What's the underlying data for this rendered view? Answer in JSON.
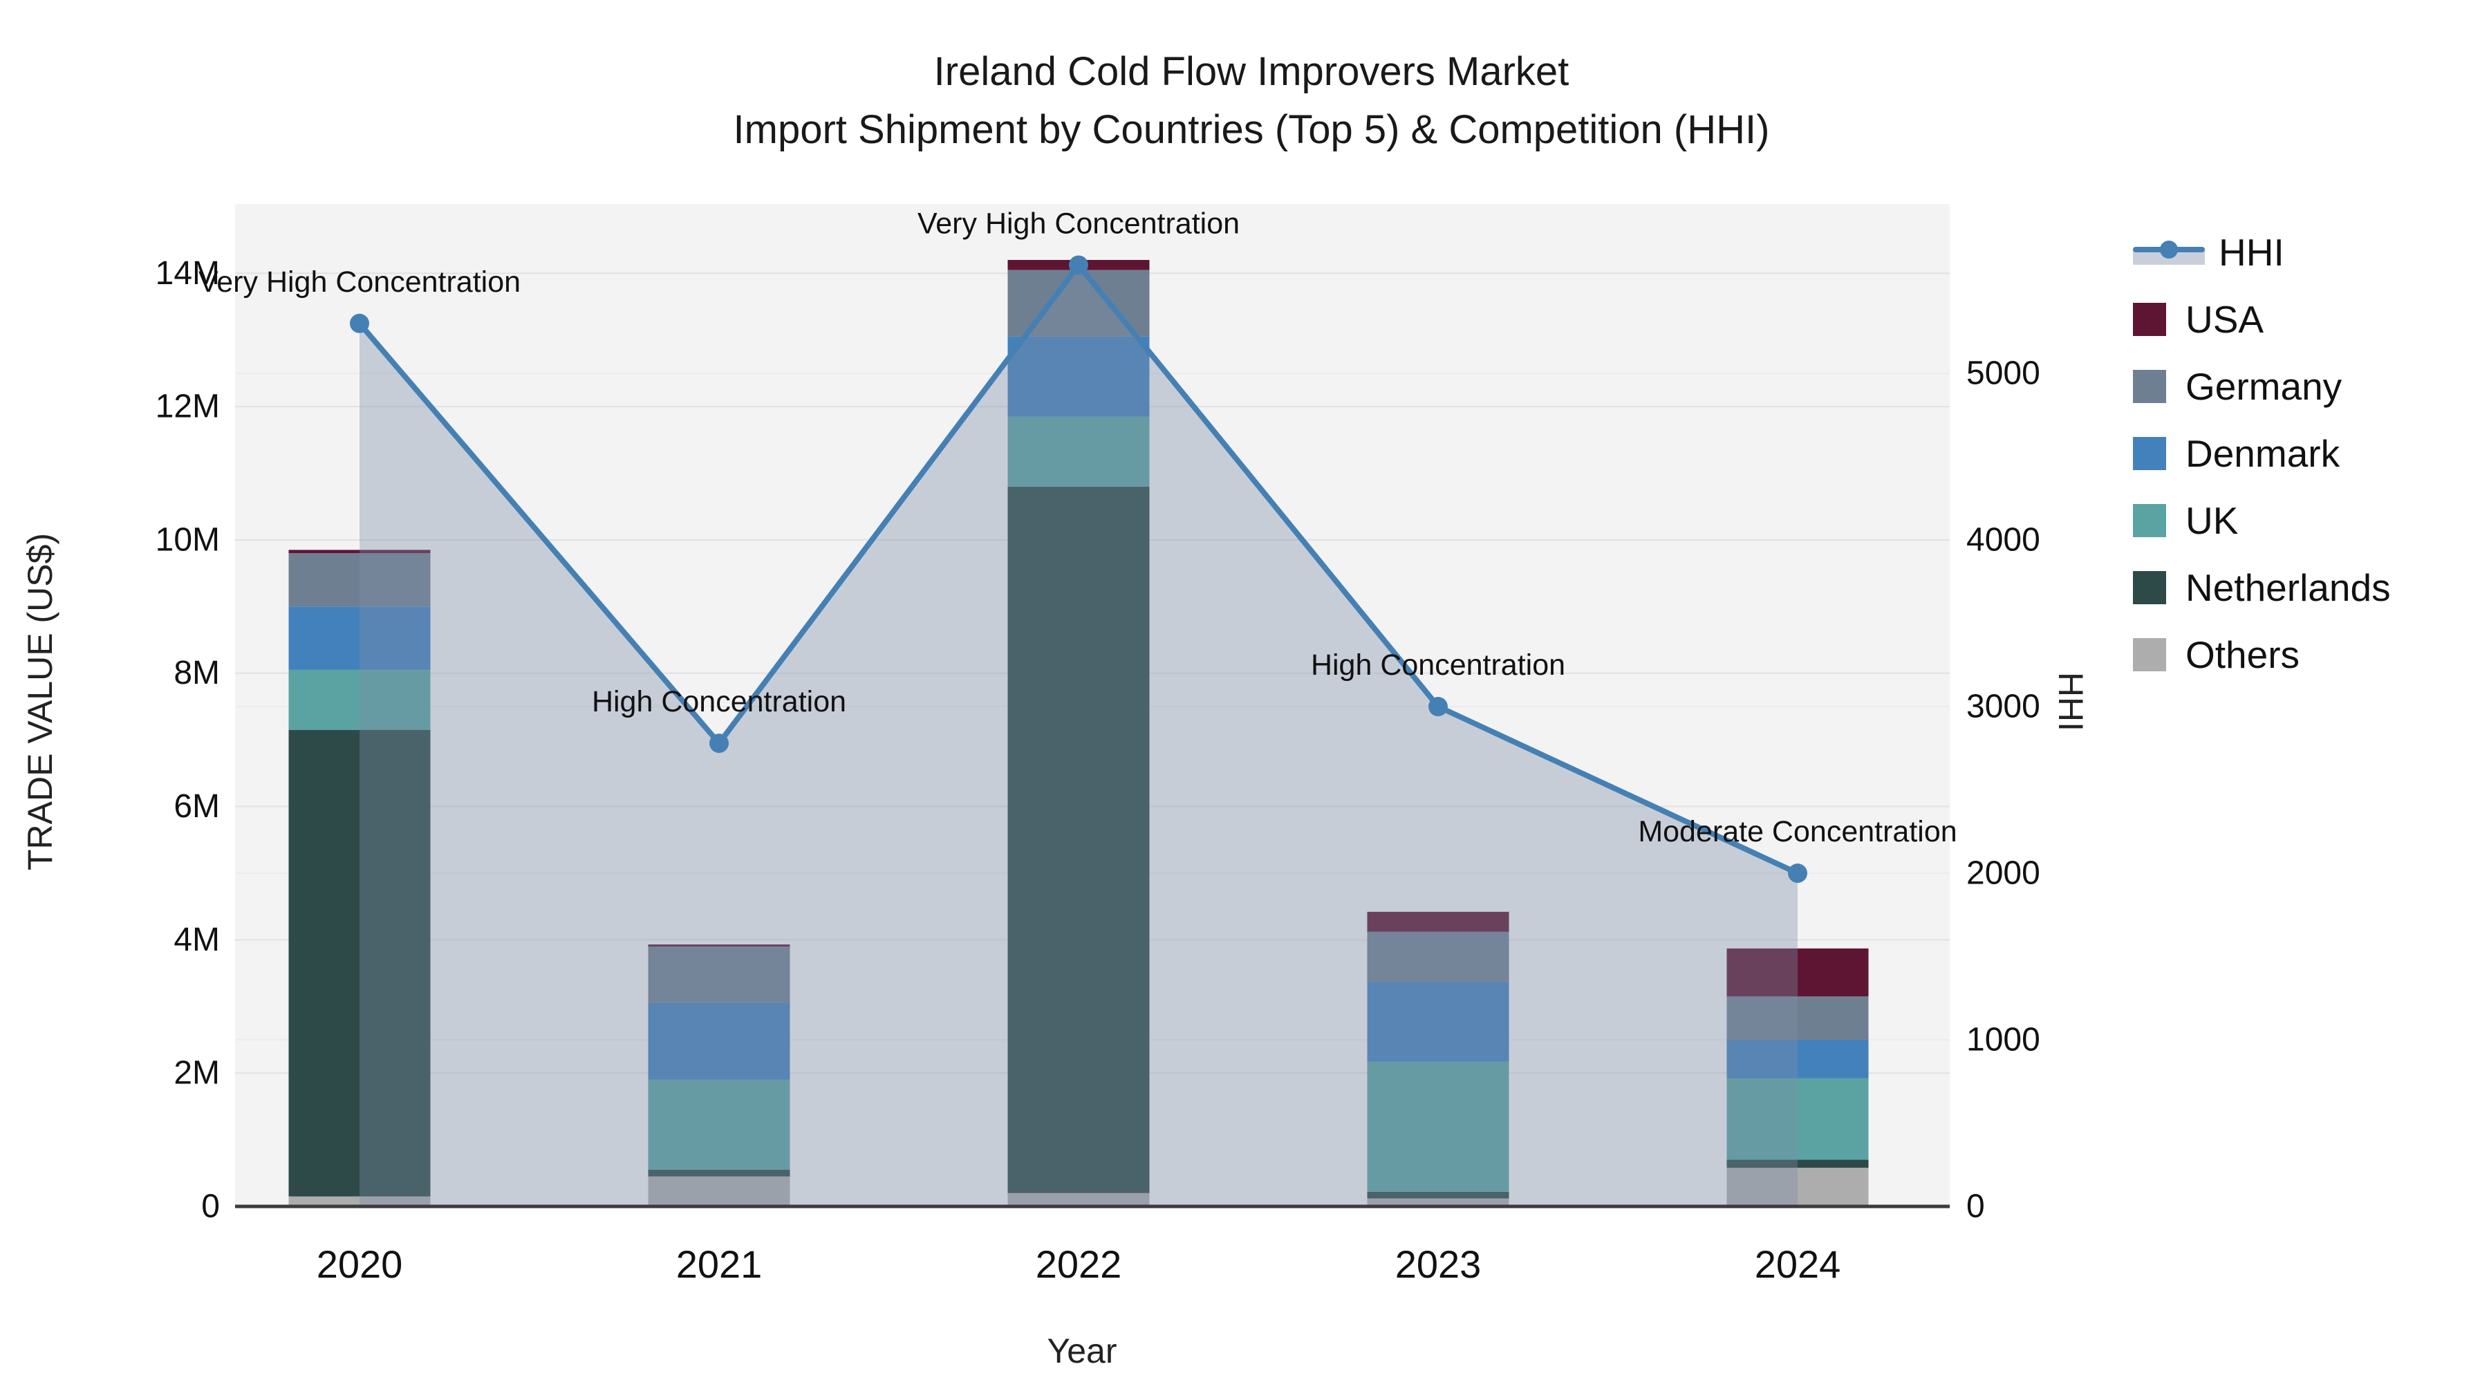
{
  "title": {
    "line1": "Ireland Cold Flow Improvers Market",
    "line2": "Import Shipment by Countries (Top 5) & Competition (HHI)"
  },
  "axes": {
    "left": {
      "title": "TRADE VALUE (US$)",
      "tick_labels": [
        "0",
        "2M",
        "4M",
        "6M",
        "8M",
        "10M",
        "12M",
        "14M"
      ],
      "tick_values": [
        0,
        2,
        4,
        6,
        8,
        10,
        12,
        14
      ],
      "range_millions": [
        0,
        15.04
      ]
    },
    "right": {
      "title": "HHI",
      "tick_labels": [
        "0",
        "1000",
        "2000",
        "3000",
        "4000",
        "5000"
      ],
      "tick_values": [
        0,
        1000,
        2000,
        3000,
        4000,
        5000
      ],
      "range": [
        0,
        6017
      ]
    },
    "x": {
      "title": "Year"
    }
  },
  "legend": {
    "items": [
      "HHI",
      "USA",
      "Germany",
      "Denmark",
      "UK",
      "Netherlands",
      "Others"
    ]
  },
  "chart_data": {
    "type": "bar+line",
    "subtype": "stacked-bars-with-secondary-axis-line-and-area-fill",
    "categories": [
      "2020",
      "2021",
      "2022",
      "2023",
      "2024"
    ],
    "values_unit": "million US$",
    "stack_order_bottom_to_top": [
      "Others",
      "Netherlands",
      "UK",
      "Denmark",
      "Germany",
      "USA"
    ],
    "series": [
      {
        "name": "Others",
        "color": "#adadae",
        "values": [
          0.15,
          0.45,
          0.2,
          0.12,
          0.58
        ]
      },
      {
        "name": "Netherlands",
        "color": "#2d4a48",
        "values": [
          7.0,
          0.1,
          10.6,
          0.1,
          0.12
        ]
      },
      {
        "name": "UK",
        "color": "#5ba3a3",
        "values": [
          0.9,
          1.35,
          1.05,
          1.95,
          1.22
        ]
      },
      {
        "name": "Denmark",
        "color": "#4381bd",
        "values": [
          0.95,
          1.15,
          1.2,
          1.2,
          0.58
        ]
      },
      {
        "name": "Germany",
        "color": "#6f7f92",
        "values": [
          0.8,
          0.85,
          1.0,
          0.75,
          0.65
        ]
      },
      {
        "name": "USA",
        "color": "#5e1533",
        "values": [
          0.05,
          0.03,
          0.15,
          0.3,
          0.72
        ]
      }
    ],
    "bar_totals_millions": [
      9.85,
      3.93,
      14.2,
      4.42,
      3.87
    ],
    "line": {
      "name": "HHI",
      "color": "#4580b4",
      "area_fill": "rgba(125,140,165,0.37)",
      "values": [
        5300,
        2780,
        5650,
        3000,
        2000
      ]
    },
    "annotations": [
      {
        "year": "2020",
        "label": "Very High Concentration"
      },
      {
        "year": "2021",
        "label": "High Concentration"
      },
      {
        "year": "2022",
        "label": "Very High Concentration"
      },
      {
        "year": "2023",
        "label": "High Concentration"
      },
      {
        "year": "2024",
        "label": "Moderate Concentration"
      }
    ],
    "layout": {
      "plot_background": "#f3f3f4",
      "gridline_color_left": "#e2e2e4",
      "gridline_color_right": "#ebebed",
      "axis_line_color": "#3c3c3c",
      "legend_position": "right",
      "grid": true
    }
  }
}
